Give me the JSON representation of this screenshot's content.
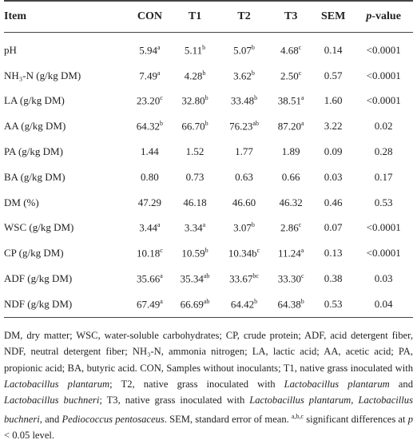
{
  "table": {
    "header": [
      [
        {
          "text": "Item"
        }
      ],
      [
        {
          "text": "CON"
        }
      ],
      [
        {
          "text": "T1"
        }
      ],
      [
        {
          "text": "T2"
        }
      ],
      [
        {
          "text": "T3"
        }
      ],
      [
        {
          "text": "SEM"
        }
      ],
      [
        {
          "text": "p",
          "style": "italic"
        },
        {
          "text": "-value"
        }
      ]
    ],
    "rows": [
      [
        "pH",
        {
          "value": "5.94",
          "sup": "a"
        },
        {
          "value": "5.11",
          "sup": "b"
        },
        {
          "value": "5.07",
          "sup": "b"
        },
        {
          "value": "4.68",
          "sup": "c"
        },
        {
          "value": "0.14"
        },
        {
          "value": "<0.0001"
        }
      ],
      [
        "NH₃-N (g/kg DM)",
        {
          "value": "7.49",
          "sup": "a"
        },
        {
          "value": "4.28",
          "sup": "b"
        },
        {
          "value": "3.62",
          "sup": "b"
        },
        {
          "value": "2.50",
          "sup": "c"
        },
        {
          "value": "0.57"
        },
        {
          "value": "<0.0001"
        }
      ],
      [
        "LA (g/kg DM)",
        {
          "value": "23.20",
          "sup": "c"
        },
        {
          "value": "32.80",
          "sup": "b"
        },
        {
          "value": "33.48",
          "sup": "b"
        },
        {
          "value": "38.51",
          "sup": "a"
        },
        {
          "value": "1.60"
        },
        {
          "value": "<0.0001"
        }
      ],
      [
        "AA (g/kg DM)",
        {
          "value": "64.32",
          "sup": "b"
        },
        {
          "value": "66.70",
          "sup": "b"
        },
        {
          "value": "76.23",
          "sup": "ab"
        },
        {
          "value": "87.20",
          "sup": "a"
        },
        {
          "value": "3.22"
        },
        {
          "value": "0.02"
        }
      ],
      [
        "PA (g/kg DM)",
        {
          "value": "1.44"
        },
        {
          "value": "1.52"
        },
        {
          "value": "1.77"
        },
        {
          "value": "1.89"
        },
        {
          "value": "0.09"
        },
        {
          "value": "0.28"
        }
      ],
      [
        "BA (g/kg DM)",
        {
          "value": "0.80"
        },
        {
          "value": "0.73"
        },
        {
          "value": "0.63"
        },
        {
          "value": "0.66"
        },
        {
          "value": "0.03"
        },
        {
          "value": "0.17"
        }
      ],
      [
        "DM (%)",
        {
          "value": "47.29"
        },
        {
          "value": "46.18"
        },
        {
          "value": "46.60"
        },
        {
          "value": "46.32"
        },
        {
          "value": "0.46"
        },
        {
          "value": "0.53"
        }
      ],
      [
        "WSC (g/kg DM)",
        {
          "value": "3.44",
          "sup": "a"
        },
        {
          "value": "3.34",
          "sup": "a"
        },
        {
          "value": "3.07",
          "sup": "b"
        },
        {
          "value": "2.86",
          "sup": "c"
        },
        {
          "value": "0.07"
        },
        {
          "value": "<0.0001"
        }
      ],
      [
        "CP (g/kg DM)",
        {
          "value": "10.18",
          "sup": "c"
        },
        {
          "value": "10.59",
          "sup": "b"
        },
        {
          "value": "10.34b",
          "sup": "c"
        },
        {
          "value": "11.24",
          "sup": "a"
        },
        {
          "value": "0.13"
        },
        {
          "value": "<0.0001"
        }
      ],
      [
        "ADF (g/kg DM)",
        {
          "value": "35.66",
          "sup": "a"
        },
        {
          "value": "35.34",
          "sup": "ab"
        },
        {
          "value": "33.67",
          "sup": "bc"
        },
        {
          "value": "33.30",
          "sup": "c"
        },
        {
          "value": "0.38"
        },
        {
          "value": "0.03"
        }
      ],
      [
        "NDF (g/kg DM)",
        {
          "value": "67.49",
          "sup": "a"
        },
        {
          "value": "66.69",
          "sup": "ab"
        },
        {
          "value": "64.42",
          "sup": "b"
        },
        {
          "value": "64.38",
          "sup": "b"
        },
        {
          "value": "0.53"
        },
        {
          "value": "0.04"
        }
      ]
    ],
    "footnote": [
      {
        "text": "DM, dry matter; WSC, water-soluble carbohydrates; CP, crude protein; ADF, acid detergent fiber, NDF, neutral detergent fiber; NH₃-N, ammonia nitrogen; LA, lactic acid; AA, acetic acid; PA, propionic acid; BA, butyric acid. CON, Samples without inoculants; T1, native grass inoculated with "
      },
      {
        "text": "Lactobacillus plantarum",
        "style": "italic"
      },
      {
        "text": "; T2, native grass inoculated with "
      },
      {
        "text": "Lactobacillus plantarum",
        "style": "italic"
      },
      {
        "text": " and "
      },
      {
        "text": "Lactobacillus buchneri",
        "style": "italic"
      },
      {
        "text": "; T3, native grass inoculated with "
      },
      {
        "text": "Lactobacillus plantarum",
        "style": "italic"
      },
      {
        "text": ", "
      },
      {
        "text": "Lactobacillus buchneri",
        "style": "italic"
      },
      {
        "text": ", and "
      },
      {
        "text": "Pediococcus pentosaceus",
        "style": "italic"
      },
      {
        "text": ". SEM, standard error of mean. "
      },
      {
        "text": "a,b,c",
        "style": "sup"
      },
      {
        "text": " significant differences at "
      },
      {
        "text": "p",
        "style": "italic"
      },
      {
        "text": " < 0.05 level."
      }
    ]
  }
}
